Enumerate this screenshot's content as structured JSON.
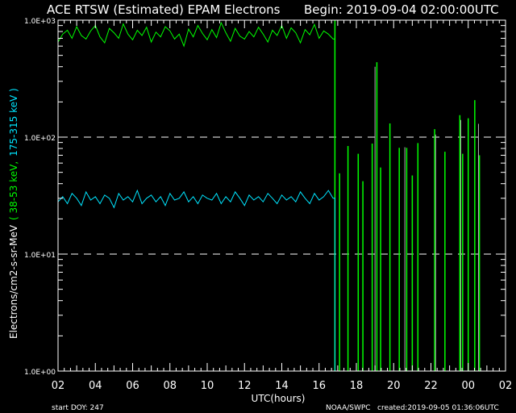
{
  "header": {
    "title": "ACE RTSW (Estimated) EPAM Electrons",
    "begin": "Begin: 2019-09-04 02:00:00UTC"
  },
  "footer": {
    "start_doy": "start DOY:  247",
    "agency": "NOAA/SWPC",
    "created": "created:2019-09-05 01:36:06UTC"
  },
  "colors": {
    "low_energy": "#00ff00",
    "high_energy": "#00e5ff",
    "grid": "#ffffff",
    "background": "#000000",
    "secondary_spikes": "#b0b0b0"
  },
  "chart_data": {
    "type": "line",
    "title": "ACE RTSW (Estimated) EPAM Electrons",
    "xlabel": "UTC(hours)",
    "ylabel_parts": [
      "Electrons/cm2-s-sr-MeV",
      "( 38-53 keV,",
      "175-315 keV )"
    ],
    "x_range_hours": [
      2,
      26
    ],
    "x_tick_labels": [
      "02",
      "04",
      "06",
      "08",
      "10",
      "12",
      "14",
      "16",
      "18",
      "20",
      "22",
      "00",
      "02"
    ],
    "ylim": [
      1,
      1000
    ],
    "y_scale": "log",
    "y_tick_labels": [
      "1.0E+00",
      "1.0E+01",
      "1.0E+02",
      "1.0E+03"
    ],
    "grid": "dashed horizontal at 1.0E+01 and 1.0E+02",
    "series": [
      {
        "name": "38-53 keV",
        "color": "#00ff00",
        "x_start_hour": 2,
        "x_step_hours": 0.25,
        "values": [
          650,
          760,
          820,
          700,
          880,
          740,
          690,
          810,
          900,
          720,
          640,
          850,
          780,
          700,
          930,
          760,
          680,
          820,
          740,
          870,
          650,
          790,
          720,
          880,
          810,
          690,
          760,
          600,
          840,
          720,
          900,
          770,
          680,
          830,
          710,
          950,
          780,
          660,
          850,
          730,
          690,
          800,
          720,
          870,
          760,
          650,
          820,
          740,
          900,
          700,
          860,
          780,
          640,
          830,
          750,
          920,
          700,
          810,
          760,
          690
        ],
        "tail_spikes": [
          [
            16.85,
            1000
          ],
          [
            17.1,
            49
          ],
          [
            17.55,
            84
          ],
          [
            18.1,
            72
          ],
          [
            18.35,
            42
          ],
          [
            18.85,
            88
          ],
          [
            19.1,
            437
          ],
          [
            19.3,
            55
          ],
          [
            19.8,
            131
          ],
          [
            20.3,
            81
          ],
          [
            20.7,
            81
          ],
          [
            21.0,
            47
          ],
          [
            21.3,
            89
          ],
          [
            22.2,
            117
          ],
          [
            22.75,
            75
          ],
          [
            23.55,
            154
          ],
          [
            23.7,
            72
          ],
          [
            24.0,
            145
          ],
          [
            24.35,
            207
          ],
          [
            24.6,
            70
          ]
        ]
      },
      {
        "name": "175-315 keV",
        "color": "#00e5ff",
        "x_start_hour": 2,
        "x_step_hours": 0.25,
        "values": [
          28,
          31,
          27,
          33,
          30,
          26,
          34,
          29,
          31,
          27,
          32,
          30,
          25,
          33,
          29,
          31,
          28,
          35,
          27,
          30,
          32,
          28,
          31,
          26,
          33,
          29,
          30,
          34,
          28,
          31,
          27,
          32,
          30,
          29,
          33,
          27,
          31,
          28,
          34,
          30,
          26,
          32,
          29,
          31,
          28,
          33,
          30,
          27,
          32,
          29,
          31,
          28,
          34,
          30,
          27,
          33,
          29,
          31,
          35,
          30
        ],
        "tail_spikes": [
          [
            19.0,
            400
          ],
          [
            20.6,
            82
          ],
          [
            22.25,
            105
          ],
          [
            23.6,
            140
          ],
          [
            24.55,
            130
          ]
        ]
      }
    ]
  }
}
